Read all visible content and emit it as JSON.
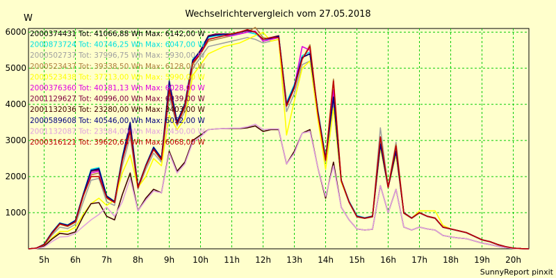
{
  "chart_data": {
    "type": "line",
    "title": "Wechselrichtervergleich vom 27.05.2018",
    "ylabel": "W",
    "xlabel": "",
    "footer": "SunnyReport pinxit",
    "ylim": [
      0,
      6100
    ],
    "xlim": [
      4.5,
      20.5
    ],
    "yticks": [
      1000,
      2000,
      3000,
      4000,
      5000,
      6000
    ],
    "xticks": [
      5,
      6,
      7,
      8,
      9,
      10,
      11,
      12,
      13,
      14,
      15,
      16,
      17,
      18,
      19,
      20
    ],
    "xtick_labels": [
      "5h",
      "6h",
      "7h",
      "8h",
      "9h",
      "10h",
      "11h",
      "12h",
      "13h",
      "14h",
      "15h",
      "16h",
      "17h",
      "18h",
      "19h",
      "20h"
    ],
    "grid": true,
    "legend_position": "top-left",
    "x": [
      4.5,
      4.75,
      5,
      5.25,
      5.5,
      5.75,
      6,
      6.25,
      6.5,
      6.75,
      7,
      7.25,
      7.5,
      7.75,
      8,
      8.25,
      8.5,
      8.75,
      9,
      9.25,
      9.5,
      9.75,
      10,
      10.25,
      10.5,
      10.75,
      11,
      11.25,
      11.5,
      11.75,
      12,
      12.25,
      12.5,
      12.75,
      13,
      13.25,
      13.5,
      13.75,
      14,
      14.25,
      14.5,
      14.75,
      15,
      15.25,
      15.5,
      15.75,
      16,
      16.25,
      16.5,
      16.75,
      17,
      17.25,
      17.5,
      17.75,
      18,
      18.25,
      18.5,
      18.75,
      19,
      19.25,
      19.5,
      19.75,
      20,
      20.25,
      20.5
    ],
    "series": [
      {
        "name": "2000374431 Tot: 41066,88 Wh Max: 6142,00 W",
        "color": "#000000",
        "values": [
          0,
          20,
          120,
          450,
          700,
          650,
          780,
          1500,
          2150,
          2200,
          1450,
          1300,
          2500,
          3400,
          1700,
          2300,
          2800,
          2500,
          4450,
          3500,
          4000,
          5200,
          5500,
          5900,
          5950,
          5950,
          5950,
          6000,
          6050,
          6000,
          5800,
          5850,
          5900,
          4000,
          4500,
          5300,
          5400,
          3800,
          2500,
          4200,
          1900,
          1300,
          900,
          850,
          900,
          2900,
          1700,
          2700,
          1000,
          850,
          1000,
          900,
          850,
          600,
          550,
          500,
          450,
          350,
          250,
          200,
          120,
          60,
          20,
          5,
          0
        ]
      },
      {
        "name": "2000873724 Tot: 40746,25 Wh Max: 6047,00 W",
        "color": "#00e0e0",
        "values": [
          0,
          20,
          130,
          460,
          720,
          660,
          790,
          1520,
          2200,
          2250,
          1470,
          1310,
          2550,
          3450,
          1720,
          2320,
          2820,
          2520,
          4500,
          3520,
          4020,
          5250,
          5450,
          5850,
          5900,
          5900,
          5920,
          5950,
          6000,
          5950,
          5800,
          5800,
          5900,
          4050,
          4550,
          5350,
          5450,
          3850,
          2550,
          4250,
          1900,
          1320,
          920,
          860,
          910,
          2950,
          1720,
          2720,
          1000,
          860,
          1000,
          900,
          850,
          600,
          550,
          500,
          450,
          350,
          250,
          200,
          120,
          60,
          20,
          5,
          0
        ]
      },
      {
        "name": "2000502737 Tot: 37996,75 Wh Max: 5930,00 W",
        "color": "#a0a0a0",
        "values": [
          0,
          15,
          100,
          380,
          600,
          560,
          680,
          1300,
          1900,
          1950,
          1300,
          1200,
          2300,
          3100,
          1650,
          2200,
          2650,
          2400,
          4200,
          3400,
          3800,
          5000,
          5300,
          5600,
          5650,
          5700,
          5750,
          5800,
          5850,
          5800,
          5700,
          5750,
          5800,
          3800,
          4300,
          5100,
          5200,
          3650,
          2400,
          4000,
          1850,
          1280,
          880,
          840,
          880,
          3350,
          1700,
          2950,
          980,
          840,
          990,
          890,
          840,
          590,
          540,
          490,
          440,
          340,
          240,
          190,
          110,
          50,
          18,
          5,
          0
        ]
      },
      {
        "name": "2000523437 Tot: 39338,50 Wh Max: 6128,00 W",
        "color": "#b08040",
        "values": [
          0,
          18,
          110,
          420,
          680,
          620,
          740,
          1450,
          2050,
          2100,
          1400,
          1280,
          2450,
          3300,
          1680,
          2280,
          2750,
          2450,
          4350,
          3450,
          3900,
          5100,
          5400,
          5750,
          5800,
          5850,
          5900,
          5950,
          6000,
          6128,
          5850,
          5800,
          5850,
          3950,
          4450,
          5250,
          5650,
          3750,
          2450,
          4700,
          1880,
          1290,
          890,
          845,
          890,
          3100,
          1710,
          2900,
          990,
          850,
          1000,
          900,
          850,
          600,
          550,
          500,
          450,
          350,
          250,
          200,
          120,
          60,
          20,
          5,
          0
        ]
      },
      {
        "name": "2000523438 Tot: 37713,00 Wh Max: 5990,00 W",
        "color": "#ffff00",
        "values": [
          0,
          10,
          70,
          300,
          480,
          480,
          600,
          950,
          1250,
          1400,
          1200,
          1350,
          2100,
          2600,
          1700,
          2000,
          2500,
          2300,
          3700,
          3300,
          3600,
          4800,
          5100,
          5400,
          5500,
          5600,
          5650,
          5700,
          5800,
          5900,
          5990,
          5750,
          5800,
          3150,
          4100,
          5000,
          5200,
          3600,
          2200,
          3900,
          1850,
          1300,
          900,
          850,
          900,
          2800,
          1700,
          2600,
          1000,
          850,
          1050,
          1050,
          1050,
          650,
          550,
          500,
          450,
          350,
          250,
          200,
          120,
          60,
          20,
          5,
          0
        ]
      },
      {
        "name": "2000376360 Tot: 40181,13 Wh Max: 6028,00 W",
        "color": "#e000e0",
        "values": [
          0,
          20,
          120,
          440,
          700,
          640,
          760,
          1480,
          2100,
          2150,
          1440,
          1290,
          2480,
          3380,
          1700,
          2300,
          2800,
          2480,
          4420,
          3480,
          3950,
          5150,
          5450,
          5800,
          5850,
          5900,
          5900,
          5950,
          6000,
          6028,
          5750,
          5800,
          5850,
          3950,
          4500,
          5600,
          5500,
          3800,
          2500,
          4400,
          1900,
          1300,
          900,
          850,
          900,
          2900,
          1700,
          2700,
          1000,
          850,
          1000,
          900,
          850,
          600,
          550,
          500,
          450,
          350,
          250,
          200,
          120,
          60,
          20,
          5,
          0
        ]
      },
      {
        "name": "2001129627 Tot: 40996,00 Wh Max: 6039,00 W",
        "color": "#800040",
        "values": [
          0,
          20,
          120,
          450,
          700,
          650,
          780,
          1500,
          2150,
          2180,
          1450,
          1300,
          2500,
          3400,
          1700,
          2300,
          2800,
          2500,
          4450,
          3500,
          4000,
          5200,
          5500,
          5900,
          5950,
          5950,
          5950,
          6000,
          6039,
          6000,
          5800,
          5850,
          5900,
          4000,
          4500,
          5300,
          5400,
          3800,
          2500,
          4200,
          1900,
          1300,
          900,
          850,
          900,
          2900,
          1700,
          2700,
          1000,
          850,
          1000,
          900,
          850,
          600,
          550,
          500,
          450,
          350,
          250,
          200,
          120,
          60,
          20,
          5,
          0
        ]
      },
      {
        "name": "2001132036 Tot: 23280,00 Wh Max: 3403,00 W",
        "color": "#400000",
        "values": [
          0,
          10,
          70,
          270,
          430,
          400,
          470,
          900,
          1250,
          1280,
          900,
          800,
          1500,
          2100,
          1050,
          1400,
          1650,
          1550,
          2700,
          2150,
          2400,
          3000,
          3150,
          3300,
          3320,
          3330,
          3330,
          3330,
          3350,
          3403,
          3250,
          3300,
          3300,
          2350,
          2700,
          3200,
          3300,
          2250,
          1400,
          2400,
          1150,
          800,
          550,
          520,
          540,
          1750,
          1000,
          1650,
          600,
          520,
          600,
          550,
          520,
          370,
          330,
          300,
          280,
          220,
          160,
          120,
          70,
          35,
          12,
          3,
          0
        ]
      },
      {
        "name": "2000589608 Tot: 40546,00 Wh Max: 6052,00 W",
        "color": "#000080",
        "values": [
          0,
          20,
          125,
          455,
          710,
          655,
          785,
          1510,
          2170,
          2220,
          1460,
          1310,
          2520,
          3500,
          1710,
          2310,
          2810,
          2510,
          4650,
          3510,
          4010,
          5220,
          5480,
          5880,
          5920,
          5940,
          5940,
          5990,
          6052,
          6000,
          5800,
          5830,
          5880,
          4000,
          4500,
          5300,
          5400,
          3800,
          2500,
          4200,
          1900,
          1300,
          900,
          850,
          900,
          2900,
          1700,
          2700,
          1000,
          850,
          1000,
          900,
          850,
          600,
          550,
          500,
          450,
          350,
          250,
          200,
          120,
          60,
          20,
          5,
          0
        ]
      },
      {
        "name": "2001132087 Tot: 23584,00 Wh Max: 3450,00 W",
        "color": "#e0a0e0",
        "values": [
          0,
          8,
          50,
          200,
          330,
          340,
          430,
          620,
          800,
          950,
          1150,
          900,
          1300,
          1950,
          1050,
          1350,
          1600,
          1550,
          2650,
          2100,
          2350,
          2950,
          3100,
          3300,
          3320,
          3330,
          3340,
          3340,
          3380,
          3450,
          3300,
          3320,
          3320,
          2350,
          2650,
          3200,
          3250,
          2250,
          1450,
          2300,
          1150,
          800,
          550,
          520,
          540,
          1750,
          1000,
          1650,
          600,
          520,
          600,
          550,
          520,
          370,
          330,
          300,
          280,
          220,
          160,
          120,
          70,
          35,
          12,
          3,
          0
        ]
      },
      {
        "name": "2000316121 Tot: 39620,63 Wh Max: 6068,00 W",
        "color": "#c00000",
        "values": [
          0,
          19,
          115,
          430,
          690,
          630,
          750,
          1470,
          2000,
          2000,
          1420,
          1280,
          2450,
          3250,
          1690,
          2290,
          2750,
          2470,
          4400,
          3450,
          3950,
          5150,
          5400,
          5800,
          5850,
          5900,
          5950,
          6000,
          6068,
          6000,
          5800,
          5850,
          5850,
          3950,
          4450,
          5250,
          5600,
          3750,
          2450,
          4650,
          1890,
          1290,
          890,
          845,
          890,
          3100,
          1700,
          2850,
          990,
          850,
          1000,
          900,
          850,
          600,
          550,
          500,
          450,
          350,
          250,
          200,
          120,
          60,
          20,
          5,
          0
        ]
      }
    ]
  }
}
